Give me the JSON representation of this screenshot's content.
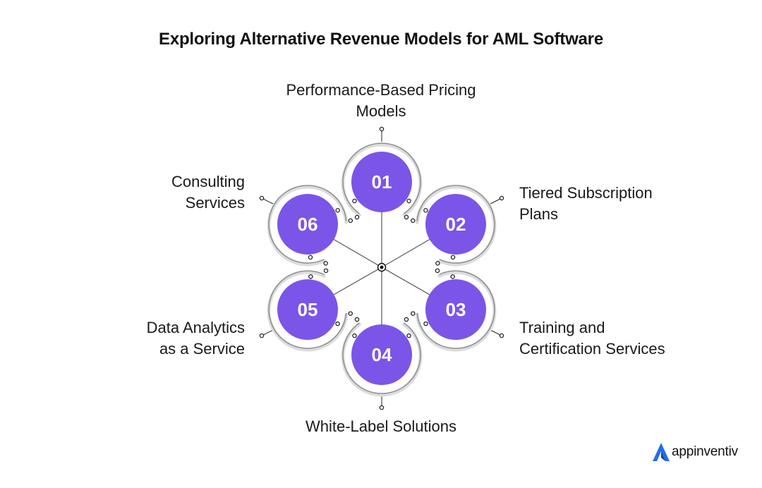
{
  "title": "Exploring Alternative Revenue Models for AML Software",
  "accent_color": "#7b55e8",
  "nodes": [
    {
      "number": "01",
      "label_lines": [
        "Performance-Based Pricing",
        "Models"
      ]
    },
    {
      "number": "02",
      "label_lines": [
        "Tiered Subscription",
        "Plans"
      ]
    },
    {
      "number": "03",
      "label_lines": [
        "Training and",
        "Certification Services"
      ]
    },
    {
      "number": "04",
      "label_lines": [
        "White-Label Solutions"
      ]
    },
    {
      "number": "05",
      "label_lines": [
        "Data Analytics",
        "as a Service"
      ]
    },
    {
      "number": "06",
      "label_lines": [
        "Consulting",
        "Services"
      ]
    }
  ],
  "brand": {
    "name": "appinventiv",
    "icon": "appinventiv-logo-icon"
  }
}
